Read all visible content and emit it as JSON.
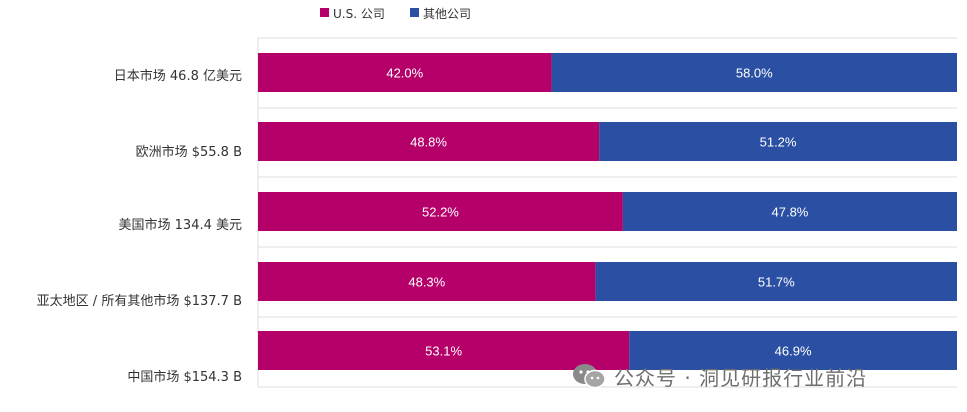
{
  "chart_data": {
    "type": "bar",
    "orientation": "horizontal",
    "stacked": true,
    "percent": true,
    "categories": [
      "日本市场 46.8 亿美元",
      "欧洲市场 $55.8 B",
      "美国市场 134.4 美元",
      "亚太地区 / 所有其他市场 $137.7 B",
      "中国市场 $154.3 B"
    ],
    "series": [
      {
        "name": "U.S. 公司",
        "color": "#b5006a",
        "values": [
          42.0,
          48.8,
          52.2,
          48.3,
          53.1
        ],
        "labels": [
          "42.0%",
          "48.8%",
          "52.2%",
          "48.3%",
          "53.1%"
        ]
      },
      {
        "name": "其他公司",
        "color": "#2a4fa3",
        "values": [
          58.0,
          51.2,
          47.8,
          51.7,
          46.9
        ],
        "labels": [
          "58.0%",
          "51.2%",
          "47.8%",
          "51.7%",
          "46.9%"
        ]
      }
    ],
    "xlim": [
      0,
      100
    ],
    "legend": "top-left",
    "grid": true
  },
  "watermark": {
    "icon": "wechat-icon",
    "text": "公众号 · 洞见研报行业前沿"
  }
}
